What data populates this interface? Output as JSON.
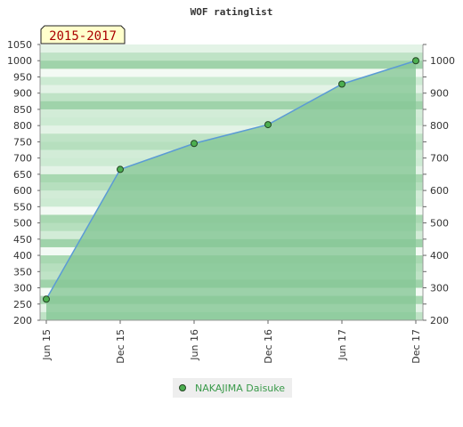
{
  "chart_data": {
    "type": "area",
    "title": "WOF ratinglist",
    "badge": "2015-2017",
    "x": [
      "Jun 15",
      "Dec 15",
      "Jun 16",
      "Dec 16",
      "Jun 17",
      "Dec 17"
    ],
    "series": [
      {
        "name": "NAKAJIMA Daisuke",
        "values": [
          265,
          665,
          745,
          803,
          928,
          1000
        ]
      }
    ],
    "y_left": {
      "min": 200,
      "max": 1050,
      "step": 50,
      "ticks": [
        "200",
        "250",
        "300",
        "350",
        "400",
        "450",
        "500",
        "550",
        "600",
        "650",
        "700",
        "750",
        "800",
        "850",
        "900",
        "950",
        "1000",
        "1050"
      ]
    },
    "y_right": {
      "min": 200,
      "max": 1050,
      "ticks": [
        "200",
        "300",
        "400",
        "500",
        "600",
        "700",
        "800",
        "900",
        "1000"
      ]
    },
    "grid": true,
    "legend_position": "bottom-center",
    "colors": {
      "line": "#5b9bd5",
      "fill": "#86c796",
      "marker": "#4caf50",
      "legend_text": "#3a9a4a",
      "badge_bg": "#ffffcc",
      "badge_text": "#aa0000"
    }
  }
}
